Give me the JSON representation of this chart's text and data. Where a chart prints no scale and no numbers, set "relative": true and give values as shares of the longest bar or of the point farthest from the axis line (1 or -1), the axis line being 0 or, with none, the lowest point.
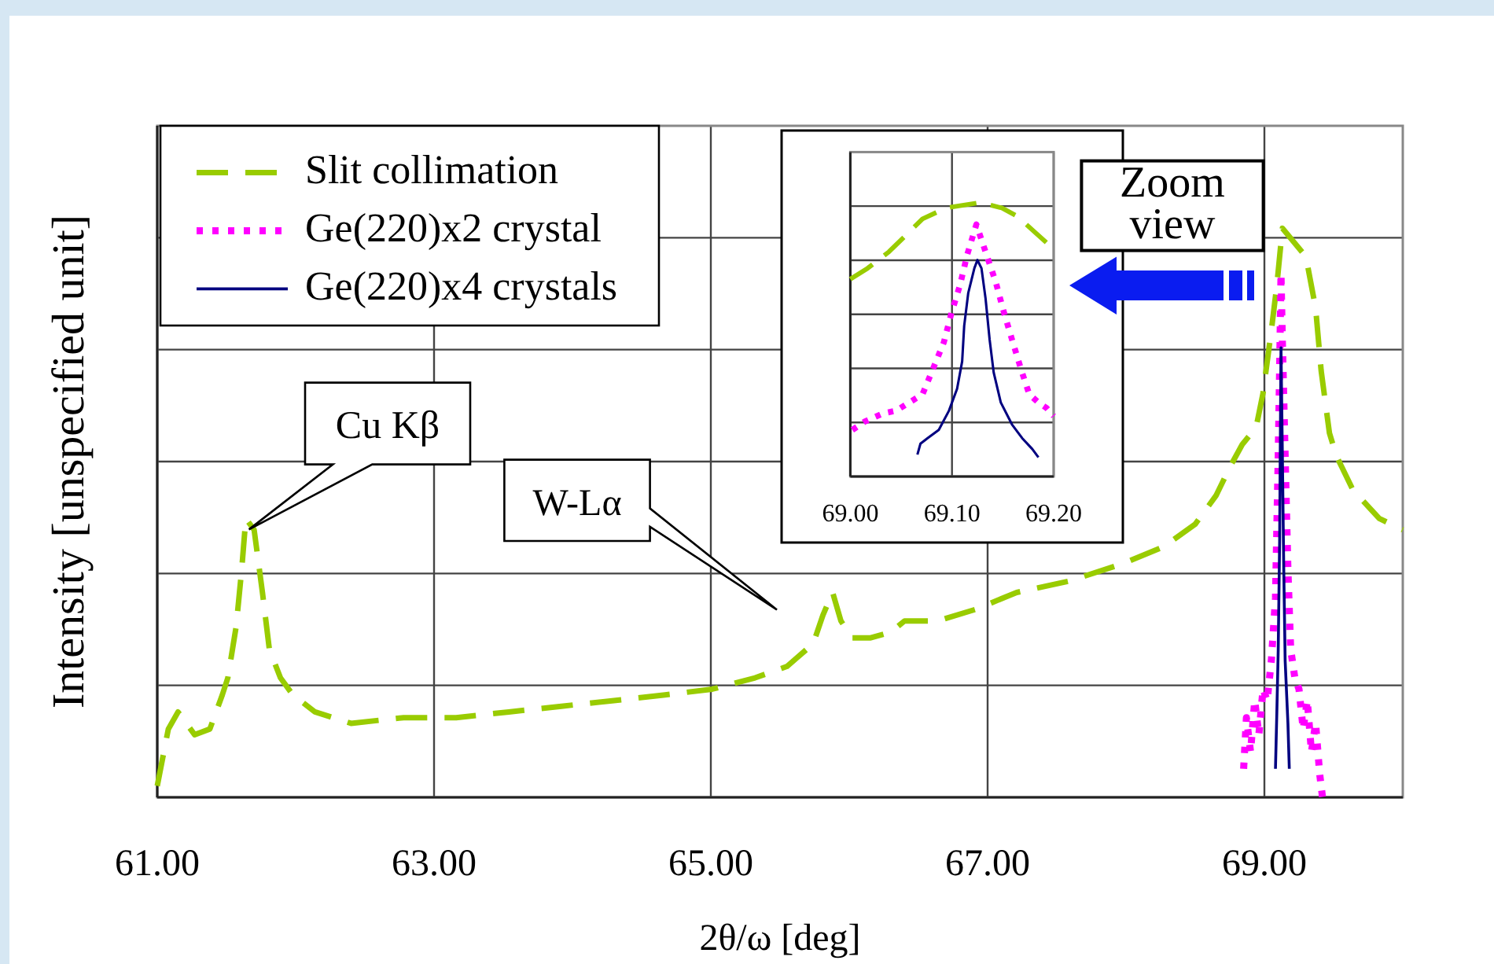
{
  "chart_data": [
    {
      "type": "line",
      "xlabel": "2θ/ω [deg]",
      "ylabel": "Intensity [unspecified unit]",
      "relative": true,
      "xlim": [
        61,
        70
      ],
      "xticks": [
        {
          "value": 61,
          "label": "61.00"
        },
        {
          "value": 63,
          "label": "63.00"
        },
        {
          "value": 65,
          "label": "65.00"
        },
        {
          "value": 67,
          "label": "67.00"
        },
        {
          "value": 69,
          "label": "69.00"
        }
      ],
      "grid": true,
      "legend": "top left",
      "annotations": [
        "Cu Kβ",
        "W-Lα",
        "Zoom view"
      ],
      "series": [
        {
          "name": "Slit collimation",
          "color": "#99cc00",
          "line_style": "dashed",
          "x": [
            61.0,
            61.08,
            61.15,
            61.27,
            61.38,
            61.47,
            61.51,
            61.57,
            61.61,
            61.64,
            61.7,
            61.76,
            61.81,
            61.89,
            61.98,
            62.14,
            62.4,
            62.78,
            63.16,
            63.54,
            63.92,
            64.3,
            64.67,
            65.01,
            65.32,
            65.55,
            65.74,
            65.81,
            65.88,
            65.94,
            66.02,
            66.15,
            66.3,
            66.4,
            66.49,
            66.64,
            66.91,
            67.21,
            67.59,
            67.97,
            68.27,
            68.5,
            68.65,
            68.75,
            68.84,
            68.94,
            68.99,
            69.05,
            69.09,
            69.13,
            69.3,
            69.37,
            69.41,
            69.47,
            69.52,
            69.64,
            69.83,
            70.0
          ],
          "values": [
            0.02,
            0.12,
            0.15,
            0.11,
            0.12,
            0.18,
            0.21,
            0.3,
            0.4,
            0.49,
            0.47,
            0.36,
            0.26,
            0.21,
            0.18,
            0.15,
            0.13,
            0.14,
            0.14,
            0.15,
            0.16,
            0.17,
            0.18,
            0.19,
            0.21,
            0.23,
            0.27,
            0.32,
            0.36,
            0.31,
            0.28,
            0.28,
            0.29,
            0.31,
            0.31,
            0.31,
            0.33,
            0.36,
            0.38,
            0.41,
            0.44,
            0.48,
            0.53,
            0.58,
            0.62,
            0.65,
            0.71,
            0.82,
            0.9,
            1.0,
            0.95,
            0.86,
            0.75,
            0.64,
            0.6,
            0.54,
            0.49,
            0.47
          ]
        },
        {
          "name": "Ge(220)x2 crystal",
          "color": "#ff00ff",
          "line_style": "dotted",
          "x": [
            68.85,
            68.87,
            68.9,
            68.93,
            68.96,
            68.99,
            69.02,
            69.05,
            69.08,
            69.1,
            69.11,
            69.12,
            69.13,
            69.15,
            69.17,
            69.19,
            69.22,
            69.25,
            69.28,
            69.31,
            69.34,
            69.37,
            69.4,
            69.42
          ],
          "values": [
            0.05,
            0.14,
            0.08,
            0.17,
            0.11,
            0.19,
            0.17,
            0.24,
            0.35,
            0.6,
            0.75,
            0.92,
            0.8,
            0.6,
            0.4,
            0.26,
            0.21,
            0.19,
            0.12,
            0.17,
            0.08,
            0.13,
            0.04,
            0.0
          ]
        },
        {
          "name": "Ge(220)x4 crystals",
          "color": "#000080",
          "line_style": "solid",
          "x": [
            69.08,
            69.09,
            69.1,
            69.11,
            69.12,
            69.13,
            69.14,
            69.15,
            69.17,
            69.18
          ],
          "values": [
            0.05,
            0.15,
            0.26,
            0.45,
            0.79,
            0.6,
            0.4,
            0.24,
            0.13,
            0.05
          ]
        }
      ]
    },
    {
      "type": "line",
      "relative": true,
      "xlim": [
        69.0,
        69.2
      ],
      "xticks": [
        {
          "value": 69.0,
          "label": "69.00"
        },
        {
          "value": 69.1,
          "label": "69.10"
        },
        {
          "value": 69.2,
          "label": "69.20"
        }
      ],
      "grid": true,
      "series": [
        {
          "color": "#99cc00",
          "line_style": "dashed",
          "x": [
            69.0,
            69.017,
            69.038,
            69.071,
            69.094,
            69.128,
            69.149,
            69.164,
            69.182,
            69.2
          ],
          "values": [
            0.72,
            0.76,
            0.82,
            0.94,
            0.98,
            1.0,
            0.98,
            0.95,
            0.89,
            0.83
          ]
        },
        {
          "color": "#ff00ff",
          "line_style": "dotted",
          "x": [
            69.002,
            69.014,
            69.032,
            69.045,
            69.058,
            69.071,
            69.081,
            69.092,
            69.099,
            69.108,
            69.115,
            69.124,
            69.133,
            69.143,
            69.151,
            69.159,
            69.168,
            69.176,
            69.185,
            69.193,
            69.2
          ],
          "values": [
            0.17,
            0.2,
            0.23,
            0.24,
            0.27,
            0.3,
            0.39,
            0.49,
            0.59,
            0.7,
            0.81,
            0.92,
            0.82,
            0.71,
            0.6,
            0.5,
            0.39,
            0.3,
            0.27,
            0.25,
            0.22
          ]
        },
        {
          "color": "#000080",
          "line_style": "solid",
          "x": [
            69.066,
            69.069,
            69.076,
            69.087,
            69.097,
            69.105,
            69.11,
            69.112,
            69.116,
            69.122,
            69.125,
            69.129,
            69.133,
            69.137,
            69.141,
            69.148,
            69.159,
            69.169,
            69.179,
            69.185
          ],
          "values": [
            0.08,
            0.12,
            0.14,
            0.17,
            0.24,
            0.32,
            0.42,
            0.55,
            0.67,
            0.76,
            0.79,
            0.76,
            0.65,
            0.5,
            0.38,
            0.27,
            0.19,
            0.14,
            0.1,
            0.07
          ]
        }
      ]
    }
  ]
}
